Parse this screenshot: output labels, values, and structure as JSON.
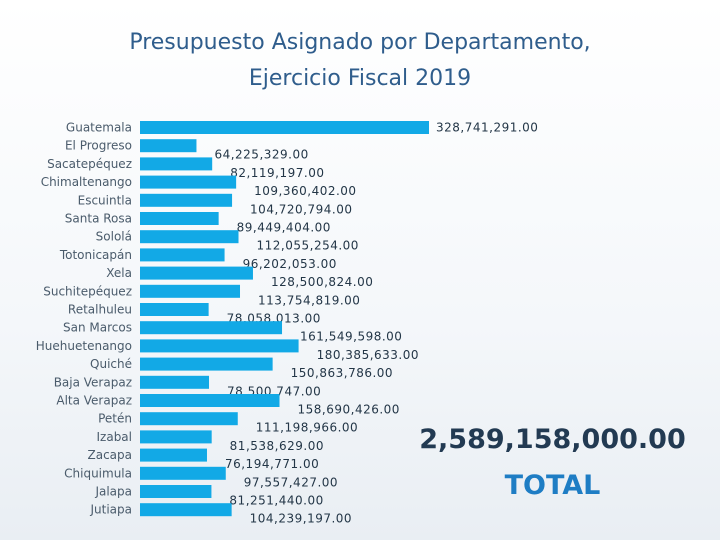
{
  "chart_data": {
    "type": "bar",
    "orientation": "horizontal",
    "title": "Presupuesto Asignado por Departamento,",
    "subtitle": "Ejercicio Fiscal 2019",
    "categories": [
      "Guatemala",
      "El Progreso",
      "Sacatepéquez",
      "Chimaltenango",
      "Escuintla",
      "Santa Rosa",
      "Sololá",
      "Totonicapán",
      "Xela",
      "Suchitepéquez",
      "Retalhuleu",
      "San Marcos",
      "Huehuetenango",
      "Quiché",
      "Baja Verapaz",
      "Alta Verapaz",
      "Petén",
      "Izabal",
      "Zacapa",
      "Chiquimula",
      "Jalapa",
      "Jutiapa"
    ],
    "values": [
      328741291,
      64225329,
      82119197,
      109360402,
      104720794,
      89449404,
      112055254,
      96202053,
      128500824,
      113754819,
      78058013,
      161549598,
      180385633,
      150863786,
      78500747,
      158690426,
      111198966,
      81538629,
      76194771,
      97557427,
      81251440,
      104239197
    ],
    "value_labels": [
      "328,741,291.00",
      "64,225,329.00",
      "82,119,197.00",
      "109,360,402.00",
      "104,720,794.00",
      "89,449,404.00",
      "112,055,254.00",
      "96,202,053.00",
      "128,500,824.00",
      "113,754,819.00",
      "78,058,013.00",
      "161,549,598.00",
      "180,385,633.00",
      "150,863,786.00",
      "78,500,747.00",
      "158,690,426.00",
      "111,198,966.00",
      "81,538,629.00",
      "76,194,771.00",
      "97,557,427.00",
      "81,251,440.00",
      "104,239,197.00"
    ],
    "xlim": [
      0,
      328741291
    ],
    "grid": false,
    "bar_color": "#12a9e6"
  },
  "total": {
    "value": "2,589,158,000.00",
    "label": "TOTAL"
  }
}
